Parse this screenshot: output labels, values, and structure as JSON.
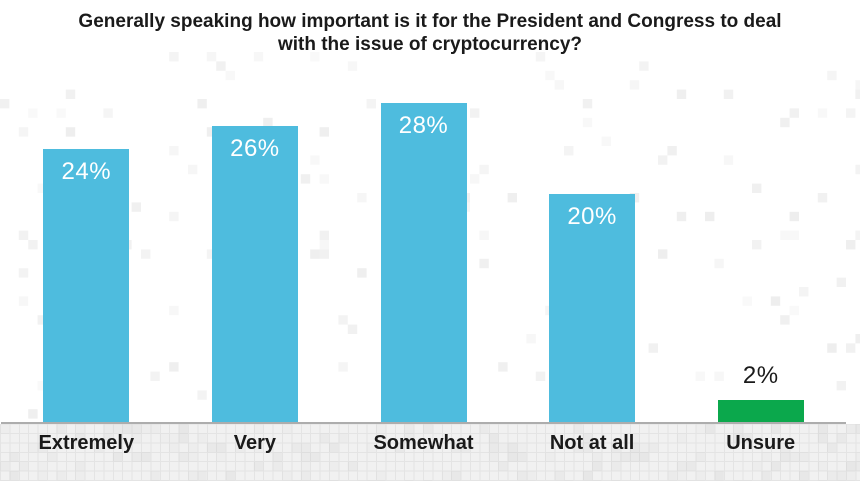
{
  "title": "Generally speaking how important is it for the President and Congress to deal with the issue of cryptocurrency?",
  "chart_data": {
    "type": "bar",
    "title": "Generally speaking how important is it for the President and Congress to deal with the issue of cryptocurrency?",
    "categories": [
      "Extremely",
      "Very",
      "Somewhat",
      "Not at all",
      "Unsure"
    ],
    "values": [
      24,
      26,
      28,
      20,
      2
    ],
    "value_labels": [
      "24%",
      "26%",
      "28%",
      "20%",
      "2%"
    ],
    "unit": "percent",
    "xlabel": "",
    "ylabel": "",
    "ylim": [
      0,
      30
    ],
    "grid": false,
    "legend": false,
    "bar_colors": [
      "#4EBCDE",
      "#4EBCDE",
      "#4EBCDE",
      "#4EBCDE",
      "#0BA84C"
    ],
    "value_label_placement": [
      "inside-top",
      "inside-top",
      "inside-top",
      "inside-top",
      "above"
    ],
    "value_label_colors": [
      "#FFFFFF",
      "#FFFFFF",
      "#FFFFFF",
      "#FFFFFF",
      "#1A1A1A"
    ]
  },
  "colors": {
    "blue_bar": "#4EBCDE",
    "green_bar": "#0BA84C",
    "title_text": "#1A1A1A",
    "axis_line": "#ADADAD",
    "background": "#FFFFFF",
    "strip_background": "#F1F1F1",
    "strip_grid_line": "#E4E4E4",
    "mosaic_pixel": "#C9C9C9"
  }
}
